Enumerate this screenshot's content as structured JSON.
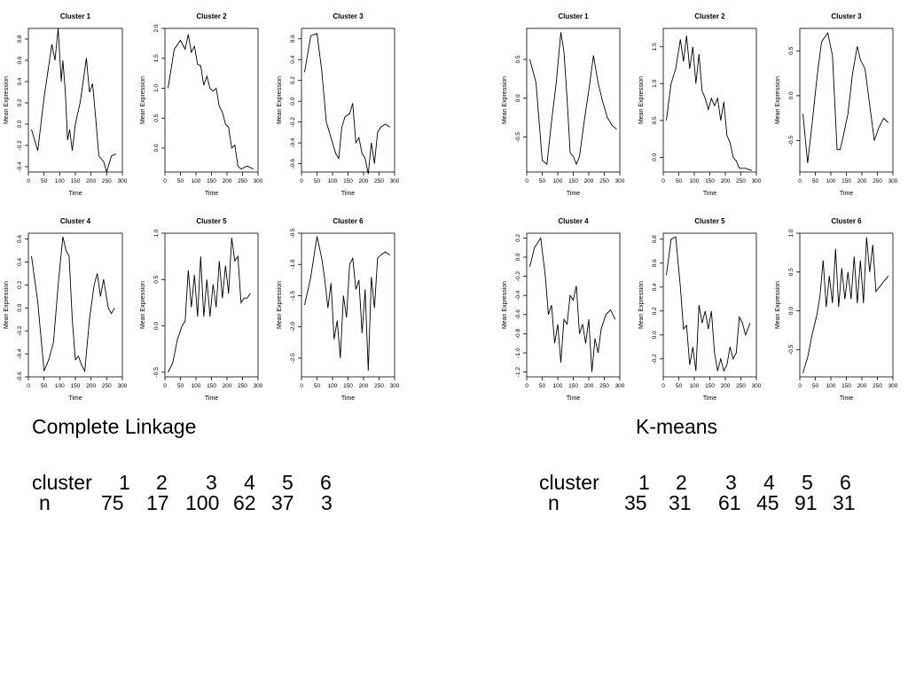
{
  "chart_data": [
    {
      "group": "Complete Linkage",
      "type": "line",
      "title": "Cluster 1",
      "xlabel": "Time",
      "ylabel": "Mean Expression",
      "xlim": [
        0,
        300
      ],
      "ylim": [
        -0.45,
        0.9
      ],
      "xticks": [
        0,
        50,
        100,
        150,
        200,
        250,
        300
      ],
      "yticks": [
        -0.4,
        -0.2,
        0.0,
        0.2,
        0.4,
        0.6,
        0.8
      ],
      "ytick_labels": [
        "-0.4",
        "-0.2",
        "0.0",
        "0.2",
        "0.4",
        "0.6",
        "0.8"
      ],
      "x": [
        10,
        30,
        50,
        65,
        75,
        85,
        95,
        105,
        110,
        118,
        125,
        132,
        140,
        150,
        165,
        175,
        185,
        195,
        205,
        215,
        225,
        240,
        250,
        265,
        280
      ],
      "y": [
        -0.05,
        -0.25,
        0.25,
        0.55,
        0.75,
        0.6,
        0.9,
        0.4,
        0.6,
        0.3,
        -0.15,
        -0.05,
        -0.25,
        0.0,
        0.2,
        0.4,
        0.62,
        0.3,
        0.38,
        0.05,
        -0.3,
        -0.35,
        -0.45,
        -0.3,
        -0.28
      ]
    },
    {
      "group": "Complete Linkage",
      "type": "line",
      "title": "Cluster 2",
      "xlabel": "Time",
      "ylabel": "Mean Expression",
      "xlim": [
        0,
        300
      ],
      "ylim": [
        -0.4,
        2.0
      ],
      "xticks": [
        0,
        50,
        100,
        150,
        200,
        250,
        300
      ],
      "yticks": [
        0.0,
        0.5,
        1.0,
        1.5,
        2.0
      ],
      "ytick_labels": [
        "0.0",
        "0.5",
        "1.0",
        "1.5",
        "2.0"
      ],
      "x": [
        10,
        30,
        50,
        65,
        75,
        85,
        95,
        105,
        115,
        125,
        135,
        145,
        155,
        165,
        175,
        185,
        195,
        205,
        215,
        225,
        235,
        245,
        265,
        285
      ],
      "y": [
        1.0,
        1.65,
        1.8,
        1.65,
        1.9,
        1.6,
        1.7,
        1.4,
        1.38,
        1.05,
        1.2,
        1.0,
        0.95,
        1.0,
        0.7,
        0.6,
        0.4,
        0.35,
        0.0,
        0.05,
        -0.3,
        -0.35,
        -0.3,
        -0.35
      ]
    },
    {
      "group": "Complete Linkage",
      "type": "line",
      "title": "Cluster 3",
      "xlabel": "Time",
      "ylabel": "Mean Expression",
      "xlim": [
        0,
        300
      ],
      "ylim": [
        -0.68,
        0.7
      ],
      "xticks": [
        0,
        50,
        100,
        150,
        200,
        250,
        300
      ],
      "yticks": [
        -0.6,
        -0.4,
        -0.2,
        0.0,
        0.2,
        0.4,
        0.6
      ],
      "ytick_labels": [
        "-0.6",
        "-0.4",
        "-0.2",
        "0.0",
        "0.2",
        "0.4",
        "0.6"
      ],
      "x": [
        10,
        30,
        50,
        65,
        80,
        95,
        110,
        120,
        130,
        140,
        155,
        165,
        175,
        185,
        195,
        205,
        215,
        225,
        235,
        245,
        255,
        270,
        285
      ],
      "y": [
        0.28,
        0.63,
        0.65,
        0.3,
        -0.2,
        -0.35,
        -0.5,
        -0.55,
        -0.25,
        -0.15,
        -0.12,
        -0.02,
        -0.4,
        -0.35,
        -0.5,
        -0.55,
        -0.7,
        -0.4,
        -0.6,
        -0.3,
        -0.25,
        -0.22,
        -0.25
      ]
    },
    {
      "group": "Complete Linkage",
      "type": "line",
      "title": "Cluster 4",
      "xlabel": "Time",
      "ylabel": "Mean Expression",
      "xlim": [
        0,
        300
      ],
      "ylim": [
        -0.6,
        0.65
      ],
      "xticks": [
        0,
        50,
        100,
        150,
        200,
        250,
        300
      ],
      "yticks": [
        -0.6,
        -0.4,
        -0.2,
        0.0,
        0.2,
        0.4,
        0.6
      ],
      "ytick_labels": [
        "-0.6",
        "-0.4",
        "-0.2",
        "0.0",
        "0.2",
        "0.4",
        "0.6"
      ],
      "x": [
        10,
        30,
        50,
        65,
        80,
        95,
        110,
        120,
        130,
        140,
        150,
        160,
        170,
        180,
        195,
        210,
        220,
        230,
        240,
        255,
        265,
        275
      ],
      "y": [
        0.45,
        0.05,
        -0.55,
        -0.45,
        -0.3,
        0.2,
        0.62,
        0.5,
        0.45,
        -0.1,
        -0.45,
        -0.42,
        -0.5,
        -0.55,
        -0.1,
        0.2,
        0.3,
        0.1,
        0.25,
        0.0,
        -0.05,
        0.0
      ]
    },
    {
      "group": "Complete Linkage",
      "type": "line",
      "title": "Cluster 5",
      "xlabel": "Time",
      "ylabel": "Mean Expression",
      "xlim": [
        0,
        300
      ],
      "ylim": [
        -0.55,
        1.0
      ],
      "xticks": [
        0,
        50,
        100,
        150,
        200,
        250,
        300
      ],
      "yticks": [
        -0.5,
        0.0,
        0.5,
        1.0
      ],
      "ytick_labels": [
        "-0.5",
        "0.0",
        "0.5",
        "1.0"
      ],
      "x": [
        10,
        25,
        40,
        55,
        65,
        75,
        85,
        95,
        105,
        115,
        125,
        135,
        145,
        155,
        165,
        175,
        185,
        195,
        205,
        215,
        225,
        235,
        245,
        255,
        265,
        275
      ],
      "y": [
        -0.5,
        -0.4,
        -0.15,
        0.0,
        0.05,
        0.6,
        0.2,
        0.55,
        0.1,
        0.75,
        0.1,
        0.5,
        0.1,
        0.45,
        0.2,
        0.7,
        0.3,
        0.65,
        0.35,
        0.95,
        0.7,
        0.75,
        0.25,
        0.3,
        0.3,
        0.35
      ]
    },
    {
      "group": "Complete Linkage",
      "type": "line",
      "title": "Cluster 6",
      "xlabel": "Time",
      "ylabel": "Mean Expression",
      "xlim": [
        0,
        300
      ],
      "ylim": [
        -2.8,
        -0.5
      ],
      "xticks": [
        0,
        50,
        100,
        150,
        200,
        250,
        300
      ],
      "yticks": [
        -2.5,
        -2.0,
        -1.5,
        -1.0,
        -0.5
      ],
      "ytick_labels": [
        "-2.5",
        "-2.0",
        "-1.5",
        "-1.0",
        "-0.5"
      ],
      "x": [
        10,
        30,
        50,
        65,
        75,
        85,
        95,
        105,
        115,
        125,
        135,
        145,
        155,
        165,
        175,
        185,
        195,
        205,
        215,
        225,
        235,
        245,
        255,
        270,
        285
      ],
      "y": [
        -1.65,
        -1.2,
        -0.55,
        -0.9,
        -1.25,
        -1.7,
        -1.3,
        -2.2,
        -1.9,
        -2.5,
        -1.5,
        -1.85,
        -1.0,
        -0.9,
        -1.4,
        -1.25,
        -2.1,
        -1.4,
        -2.7,
        -1.2,
        -1.7,
        -0.9,
        -0.85,
        -0.8,
        -0.85
      ]
    },
    {
      "group": "K-means",
      "type": "line",
      "title": "Cluster 1",
      "xlabel": "Time",
      "ylabel": "Mean Expression",
      "xlim": [
        0,
        300
      ],
      "ylim": [
        -0.95,
        0.9
      ],
      "xticks": [
        0,
        50,
        100,
        150,
        200,
        250,
        300
      ],
      "yticks": [
        -0.5,
        0.0,
        0.5
      ],
      "ytick_labels": [
        "-0.5",
        "0.0",
        "0.5"
      ],
      "x": [
        10,
        30,
        50,
        65,
        80,
        95,
        110,
        120,
        130,
        140,
        150,
        160,
        170,
        185,
        200,
        215,
        230,
        245,
        260,
        275,
        290
      ],
      "y": [
        0.5,
        0.2,
        -0.8,
        -0.85,
        -0.3,
        0.2,
        0.85,
        0.6,
        0.0,
        -0.7,
        -0.75,
        -0.85,
        -0.75,
        -0.3,
        0.1,
        0.55,
        0.2,
        -0.05,
        -0.25,
        -0.35,
        -0.4
      ]
    },
    {
      "group": "K-means",
      "type": "line",
      "title": "Cluster 2",
      "xlabel": "Time",
      "ylabel": "Mean Expression",
      "xlim": [
        0,
        300
      ],
      "ylim": [
        -0.2,
        1.75
      ],
      "xticks": [
        0,
        50,
        100,
        150,
        200,
        250,
        300
      ],
      "yticks": [
        0.0,
        0.5,
        1.0,
        1.5
      ],
      "ytick_labels": [
        "0.0",
        "0.5",
        "1.0",
        "1.5"
      ],
      "x": [
        10,
        25,
        40,
        55,
        65,
        75,
        85,
        95,
        105,
        115,
        125,
        135,
        145,
        155,
        165,
        175,
        185,
        195,
        205,
        215,
        225,
        235,
        245,
        265,
        285
      ],
      "y": [
        0.5,
        1.0,
        1.2,
        1.6,
        1.3,
        1.65,
        1.2,
        1.5,
        1.0,
        1.4,
        0.9,
        0.8,
        0.65,
        0.8,
        0.7,
        0.8,
        0.5,
        0.75,
        0.3,
        0.2,
        0.0,
        -0.05,
        -0.15,
        -0.15,
        -0.18
      ]
    },
    {
      "group": "K-means",
      "type": "line",
      "title": "Cluster 3",
      "xlabel": "Time",
      "ylabel": "Mean Expression",
      "xlim": [
        0,
        300
      ],
      "ylim": [
        -0.85,
        0.75
      ],
      "xticks": [
        0,
        50,
        100,
        150,
        200,
        250,
        300
      ],
      "yticks": [
        -0.5,
        0.0,
        0.5
      ],
      "ytick_labels": [
        "-0.5",
        "0.0",
        "0.5"
      ],
      "x": [
        10,
        25,
        40,
        55,
        70,
        90,
        105,
        120,
        130,
        140,
        155,
        170,
        185,
        195,
        210,
        225,
        240,
        255,
        270,
        285
      ],
      "y": [
        -0.2,
        -0.75,
        -0.3,
        0.2,
        0.6,
        0.7,
        0.45,
        -0.6,
        -0.6,
        -0.45,
        -0.2,
        0.25,
        0.55,
        0.4,
        0.3,
        -0.1,
        -0.5,
        -0.35,
        -0.25,
        -0.3
      ]
    },
    {
      "group": "K-means",
      "type": "line",
      "title": "Cluster 4",
      "xlabel": "Time",
      "ylabel": "Mean Expression",
      "xlim": [
        0,
        300
      ],
      "ylim": [
        -1.25,
        0.25
      ],
      "xticks": [
        0,
        50,
        100,
        150,
        200,
        250,
        300
      ],
      "yticks": [
        -1.2,
        -1.0,
        -0.8,
        -0.6,
        -0.4,
        -0.2,
        0.0,
        0.2
      ],
      "ytick_labels": [
        "-1.2",
        "-1.0",
        "-0.8",
        "-0.6",
        "-0.4",
        "-0.2",
        "0.0",
        "0.2"
      ],
      "x": [
        10,
        25,
        45,
        60,
        70,
        80,
        90,
        100,
        110,
        120,
        130,
        140,
        150,
        160,
        170,
        180,
        190,
        200,
        210,
        220,
        230,
        240,
        255,
        270,
        285
      ],
      "y": [
        -0.1,
        0.1,
        0.2,
        -0.2,
        -0.6,
        -0.5,
        -0.9,
        -0.7,
        -1.1,
        -0.65,
        -0.7,
        -0.4,
        -0.45,
        -0.3,
        -0.8,
        -0.7,
        -0.9,
        -0.65,
        -1.2,
        -0.85,
        -1.0,
        -0.75,
        -0.6,
        -0.55,
        -0.65
      ]
    },
    {
      "group": "K-means",
      "type": "line",
      "title": "Cluster 5",
      "xlabel": "Time",
      "ylabel": "Mean Expression",
      "xlim": [
        0,
        300
      ],
      "ylim": [
        -0.35,
        0.85
      ],
      "xticks": [
        0,
        50,
        100,
        150,
        200,
        250,
        300
      ],
      "yticks": [
        -0.2,
        0.0,
        0.2,
        0.4,
        0.6,
        0.8
      ],
      "ytick_labels": [
        "-0.2",
        "0.0",
        "0.2",
        "0.4",
        "0.6",
        "0.8"
      ],
      "x": [
        10,
        25,
        40,
        55,
        65,
        75,
        85,
        95,
        105,
        115,
        125,
        135,
        145,
        155,
        165,
        175,
        185,
        195,
        205,
        215,
        225,
        235,
        245,
        255,
        265,
        280
      ],
      "y": [
        0.5,
        0.8,
        0.82,
        0.4,
        0.05,
        0.08,
        -0.25,
        -0.1,
        -0.3,
        0.25,
        0.1,
        0.2,
        0.05,
        0.2,
        -0.15,
        -0.3,
        -0.2,
        -0.3,
        -0.25,
        -0.1,
        -0.2,
        -0.15,
        0.15,
        0.1,
        0.0,
        0.1
      ]
    },
    {
      "group": "K-means",
      "type": "line",
      "title": "Cluster 6",
      "xlabel": "Time",
      "ylabel": "Mean Expression",
      "xlim": [
        0,
        300
      ],
      "ylim": [
        -0.85,
        1.0
      ],
      "xticks": [
        0,
        50,
        100,
        150,
        200,
        250,
        300
      ],
      "yticks": [
        -0.5,
        0.0,
        0.5,
        1.0
      ],
      "ytick_labels": [
        "-0.5",
        "0.0",
        "0.5",
        "1.0"
      ],
      "x": [
        10,
        25,
        40,
        55,
        65,
        75,
        85,
        95,
        105,
        115,
        125,
        135,
        145,
        155,
        165,
        175,
        185,
        195,
        205,
        215,
        225,
        235,
        245,
        255,
        265,
        285
      ],
      "y": [
        -0.8,
        -0.6,
        -0.3,
        -0.05,
        0.2,
        0.65,
        0.05,
        0.45,
        0.1,
        0.8,
        0.05,
        0.55,
        0.15,
        0.5,
        0.15,
        0.7,
        0.1,
        0.65,
        0.1,
        0.95,
        0.5,
        0.85,
        0.25,
        0.3,
        0.35,
        0.45
      ]
    }
  ],
  "left_summary": {
    "title": "Complete Linkage",
    "row_labels": [
      "cluster",
      "n"
    ],
    "clusters": [
      "1",
      "2",
      "3",
      "4",
      "5",
      "6"
    ],
    "counts": [
      "75",
      "17",
      "100",
      "62",
      "37",
      "3"
    ]
  },
  "right_summary": {
    "title": "K-means",
    "row_labels": [
      "cluster",
      "n"
    ],
    "clusters": [
      "1",
      "2",
      "3",
      "4",
      "5",
      "6"
    ],
    "counts": [
      "35",
      "31",
      "61",
      "45",
      "91",
      "31"
    ]
  }
}
